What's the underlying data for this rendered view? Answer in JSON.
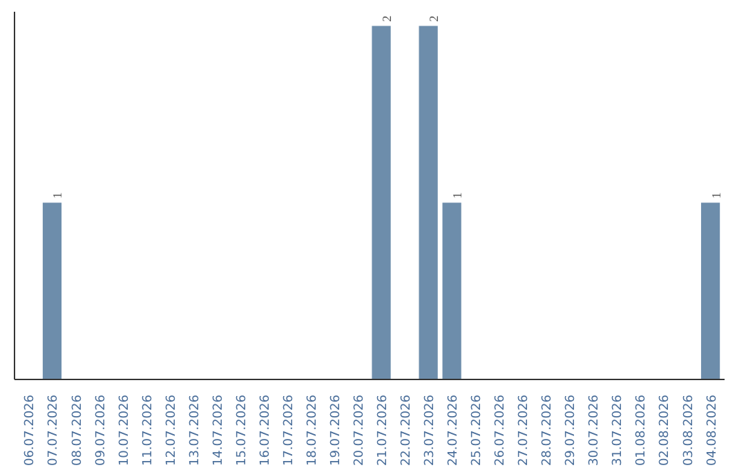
{
  "chart_data": {
    "type": "bar",
    "categories": [
      "06.07.2026",
      "07.07.2026",
      "08.07.2026",
      "09.07.2026",
      "10.07.2026",
      "11.07.2026",
      "12.07.2026",
      "13.07.2026",
      "14.07.2026",
      "15.07.2026",
      "16.07.2026",
      "17.07.2026",
      "18.07.2026",
      "19.07.2026",
      "20.07.2026",
      "21.07.2026",
      "22.07.2026",
      "23.07.2026",
      "24.07.2026",
      "25.07.2026",
      "26.07.2026",
      "27.07.2026",
      "28.07.2026",
      "29.07.2026",
      "30.07.2026",
      "31.07.2026",
      "01.08.2026",
      "02.08.2026",
      "03.08.2026",
      "04.08.2026"
    ],
    "values": [
      0,
      1,
      0,
      0,
      0,
      0,
      0,
      0,
      0,
      0,
      0,
      0,
      0,
      0,
      0,
      2,
      0,
      2,
      1,
      0,
      0,
      0,
      0,
      0,
      0,
      0,
      0,
      0,
      0,
      1
    ],
    "value_labels": [
      null,
      "1",
      null,
      null,
      null,
      null,
      null,
      null,
      null,
      null,
      null,
      null,
      null,
      null,
      null,
      "2",
      null,
      "2",
      "1",
      null,
      null,
      null,
      null,
      null,
      null,
      null,
      null,
      null,
      null,
      "1"
    ],
    "color": "#6d8dab",
    "grid": false
  }
}
